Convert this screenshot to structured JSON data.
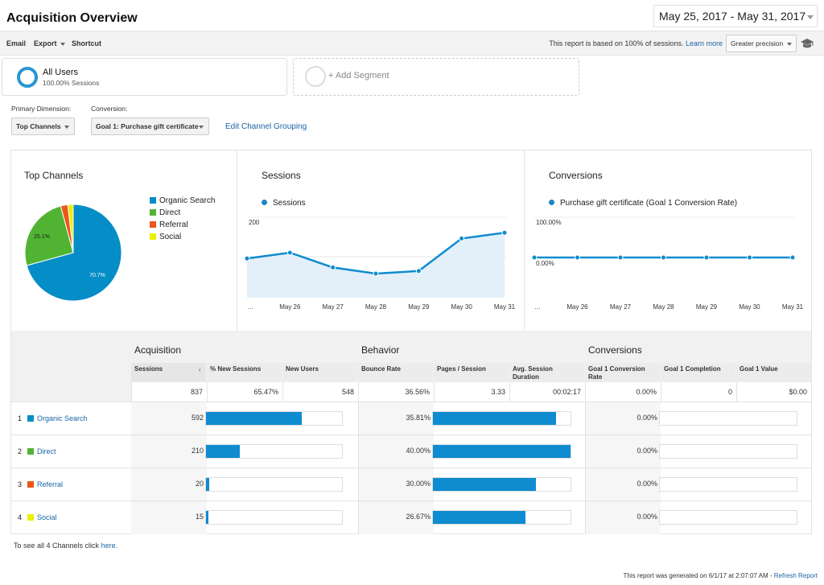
{
  "header": {
    "title": "Acquisition Overview",
    "date_range": "May 25, 2017 - May 31, 2017"
  },
  "toolbar": {
    "email": "Email",
    "export": "Export",
    "shortcut": "Shortcut",
    "note": "This report is based on 100% of sessions.",
    "learn_more": "Learn more",
    "precision": "Greater precision",
    "icons": {
      "cap": "graduation-cap-icon"
    }
  },
  "segments": {
    "all_users": "All Users",
    "all_users_sub": "100.00% Sessions",
    "add_segment": "+ Add Segment"
  },
  "controls": {
    "primary_dimension_label": "Primary Dimension:",
    "conversion_label": "Conversion:",
    "primary_dimension_value": "Top Channels",
    "conversion_value": "Goal 1: Purchase gift certificate",
    "edit_grouping": "Edit Channel Grouping"
  },
  "top_channels": {
    "title": "Top Channels",
    "legend": [
      "Organic Search",
      "Direct",
      "Referral",
      "Social"
    ],
    "colors": [
      "#058dc7",
      "#50b432",
      "#ed561b",
      "#edef00"
    ],
    "pie_labels": [
      "70.7%",
      "25.1%"
    ]
  },
  "sessions_chart": {
    "title": "Sessions",
    "legend": "Sessions"
  },
  "conversions_chart": {
    "title": "Conversions",
    "legend": "Purchase gift certificate (Goal 1 Conversion Rate)"
  },
  "chart_data": [
    {
      "type": "pie",
      "title": "Top Channels",
      "categories": [
        "Organic Search",
        "Direct",
        "Referral",
        "Social"
      ],
      "values": [
        70.7,
        25.1,
        2.4,
        1.8
      ]
    },
    {
      "type": "area",
      "title": "Sessions",
      "x": [
        "…",
        "May 26",
        "May 27",
        "May 28",
        "May 29",
        "May 30",
        "May 31"
      ],
      "series": [
        {
          "name": "Sessions",
          "values": [
            122,
            140,
            94,
            75,
            83,
            184,
            202
          ]
        }
      ],
      "y_ticks": [
        "200",
        "100"
      ],
      "ylim": [
        0,
        250
      ]
    },
    {
      "type": "line",
      "title": "Conversions",
      "x": [
        "…",
        "May 26",
        "May 27",
        "May 28",
        "May 29",
        "May 30",
        "May 31"
      ],
      "series": [
        {
          "name": "Purchase gift certificate (Goal 1 Conversion Rate)",
          "values": [
            0,
            0,
            0,
            0,
            0,
            0,
            0
          ]
        }
      ],
      "y_ticks": [
        "100.00%",
        "0.00%"
      ],
      "ylim": [
        0,
        100
      ]
    }
  ],
  "table": {
    "groups": [
      "Acquisition",
      "Behavior",
      "Conversions"
    ],
    "columns": [
      "Sessions",
      "% New Sessions",
      "New Users",
      "Bounce Rate",
      "Pages / Session",
      "Avg. Session Duration",
      "Goal 1 Conversion Rate",
      "Goal 1 Completion",
      "Goal 1 Value"
    ],
    "totals": [
      "837",
      "65.47%",
      "548",
      "36.56%",
      "3.33",
      "00:02:17",
      "0.00%",
      "0",
      "$0.00"
    ],
    "rows": [
      {
        "num": "1",
        "channel": "Organic Search",
        "sessions": "592",
        "sessions_share": 70.7,
        "bounce": "35.81%",
        "pages_share": 89.5,
        "conv": "0.00%"
      },
      {
        "num": "2",
        "channel": "Direct",
        "sessions": "210",
        "sessions_share": 25.1,
        "bounce": "40.00%",
        "pages_share": 100,
        "conv": "0.00%"
      },
      {
        "num": "3",
        "channel": "Referral",
        "sessions": "20",
        "sessions_share": 2.4,
        "bounce": "30.00%",
        "pages_share": 75,
        "conv": "0.00%"
      },
      {
        "num": "4",
        "channel": "Social",
        "sessions": "15",
        "sessions_share": 1.8,
        "bounce": "26.67%",
        "pages_share": 67,
        "conv": "0.00%"
      }
    ]
  },
  "footer": {
    "see_all": "To see all 4 Channels click",
    "here": "here.",
    "generated": "This report was generated on 6/1/17 at 2:07:07 AM -",
    "refresh": "Refresh Report"
  }
}
